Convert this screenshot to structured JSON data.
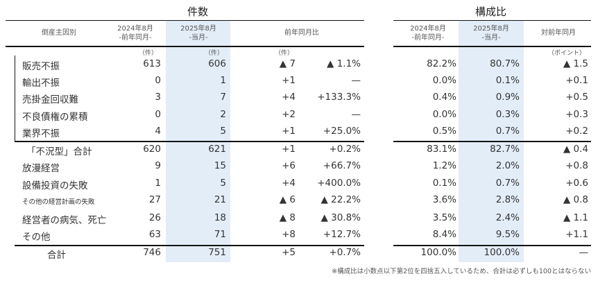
{
  "sections": {
    "count_title": "件数",
    "ratio_title": "構成比"
  },
  "headers": {
    "cause": "倒産主因別",
    "prev_line1": "2024年8月",
    "prev_line2": "-前年同月-",
    "curr_line1": "2025年8月",
    "curr_line2": "-当月-",
    "yoy": "前年同月比",
    "ratio_prev_line1": "2024年8月",
    "ratio_prev_line2": "-前年同月-",
    "ratio_curr_line1": "2025年8月",
    "ratio_curr_line2": "-当月-",
    "ratio_yoy": "対前年同月"
  },
  "units": {
    "prev": "（件）",
    "curr": "（件）",
    "diff": "（件）",
    "points": "（ポイント）"
  },
  "rows": [
    {
      "label": "販売不振",
      "prev": "613",
      "curr": "606",
      "diff": "▲ 7",
      "pct": "▲ 1.1%",
      "r_prev": "82.2%",
      "r_curr": "80.7%",
      "r_diff": "▲ 1.5"
    },
    {
      "label": "輸出不振",
      "prev": "0",
      "curr": "1",
      "diff": "+1",
      "pct": "—",
      "r_prev": "0.0%",
      "r_curr": "0.1%",
      "r_diff": "+0.1"
    },
    {
      "label": "売掛金回収難",
      "prev": "3",
      "curr": "7",
      "diff": "+4",
      "pct": "+133.3%",
      "r_prev": "0.4%",
      "r_curr": "0.9%",
      "r_diff": "+0.5"
    },
    {
      "label": "不良債権の累積",
      "prev": "0",
      "curr": "2",
      "diff": "+2",
      "pct": "—",
      "r_prev": "0.0%",
      "r_curr": "0.3%",
      "r_diff": "+0.3"
    },
    {
      "label": "業界不振",
      "prev": "4",
      "curr": "5",
      "diff": "+1",
      "pct": "+25.0%",
      "r_prev": "0.5%",
      "r_curr": "0.7%",
      "r_diff": "+0.2"
    },
    {
      "label": "「不況型」合計",
      "prev": "620",
      "curr": "621",
      "diff": "+1",
      "pct": "+0.2%",
      "r_prev": "83.1%",
      "r_curr": "82.7%",
      "r_diff": "▲ 0.4"
    },
    {
      "label": "放漫経営",
      "prev": "9",
      "curr": "15",
      "diff": "+6",
      "pct": "+66.7%",
      "r_prev": "1.2%",
      "r_curr": "2.0%",
      "r_diff": "+0.8"
    },
    {
      "label": "設備投資の失敗",
      "prev": "1",
      "curr": "5",
      "diff": "+4",
      "pct": "+400.0%",
      "r_prev": "0.1%",
      "r_curr": "0.7%",
      "r_diff": "+0.6"
    },
    {
      "label": "その他の経営計画の失敗",
      "prev": "27",
      "curr": "21",
      "diff": "▲ 6",
      "pct": "▲ 22.2%",
      "r_prev": "3.6%",
      "r_curr": "2.8%",
      "r_diff": "▲ 0.8"
    },
    {
      "label": "経営者の病気、死亡",
      "prev": "26",
      "curr": "18",
      "diff": "▲ 8",
      "pct": "▲ 30.8%",
      "r_prev": "3.5%",
      "r_curr": "2.4%",
      "r_diff": "▲ 1.1"
    },
    {
      "label": "その他",
      "prev": "63",
      "curr": "71",
      "diff": "+8",
      "pct": "+12.7%",
      "r_prev": "8.4%",
      "r_curr": "9.5%",
      "r_diff": "+1.1"
    },
    {
      "label": "合計",
      "prev": "746",
      "curr": "751",
      "diff": "+5",
      "pct": "+0.7%",
      "r_prev": "100.0%",
      "r_curr": "100.0%",
      "r_diff": "—"
    }
  ],
  "footnote": "※構成比は小数点以下第2位を四捨五入しているため、合計は必ずしも100とはならない",
  "colors": {
    "highlight_column": "#e3edf8",
    "rule": "#111111",
    "text": "#333333"
  }
}
